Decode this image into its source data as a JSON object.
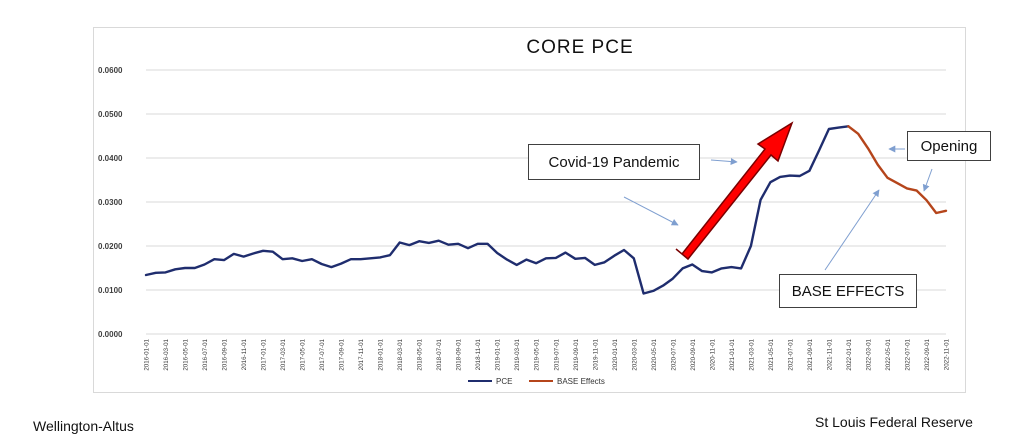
{
  "chart_data": {
    "type": "line",
    "title": "CORE PCE",
    "xlabel": "",
    "ylabel": "",
    "ylim": [
      0,
      0.06
    ],
    "y_ticks": [
      "0.0000",
      "0.0100",
      "0.0200",
      "0.0300",
      "0.0400",
      "0.0500",
      "0.0600"
    ],
    "grid": true,
    "legend_position": "bottom",
    "x": [
      "2016-01-01",
      "2016-02-01",
      "2016-03-01",
      "2016-04-01",
      "2016-05-01",
      "2016-06-01",
      "2016-07-01",
      "2016-08-01",
      "2016-09-01",
      "2016-10-01",
      "2016-11-01",
      "2016-12-01",
      "2017-01-01",
      "2017-02-01",
      "2017-03-01",
      "2017-04-01",
      "2017-05-01",
      "2017-06-01",
      "2017-07-01",
      "2017-08-01",
      "2017-09-01",
      "2017-10-01",
      "2017-11-01",
      "2017-12-01",
      "2018-01-01",
      "2018-02-01",
      "2018-03-01",
      "2018-04-01",
      "2018-05-01",
      "2018-06-01",
      "2018-07-01",
      "2018-08-01",
      "2018-09-01",
      "2018-10-01",
      "2018-11-01",
      "2018-12-01",
      "2019-01-01",
      "2019-02-01",
      "2019-03-01",
      "2019-04-01",
      "2019-05-01",
      "2019-06-01",
      "2019-07-01",
      "2019-08-01",
      "2019-09-01",
      "2019-10-01",
      "2019-11-01",
      "2019-12-01",
      "2020-01-01",
      "2020-02-01",
      "2020-03-01",
      "2020-04-01",
      "2020-05-01",
      "2020-06-01",
      "2020-07-01",
      "2020-08-01",
      "2020-09-01",
      "2020-10-01",
      "2020-11-01",
      "2020-12-01",
      "2021-01-01",
      "2021-02-01",
      "2021-03-01",
      "2021-04-01",
      "2021-05-01",
      "2021-06-01",
      "2021-07-01",
      "2021-08-01",
      "2021-09-01",
      "2021-10-01",
      "2021-11-01",
      "2021-12-01",
      "2022-01-01",
      "2022-02-01",
      "2022-03-01",
      "2022-04-01",
      "2022-05-01",
      "2022-06-01",
      "2022-07-01",
      "2022-08-01",
      "2022-09-01",
      "2022-10-01",
      "2022-11-01"
    ],
    "x_tick_labels": [
      "2016-01-01",
      "2016-03-01",
      "2016-05-01",
      "2016-07-01",
      "2016-09-01",
      "2016-11-01",
      "2017-01-01",
      "2017-03-01",
      "2017-05-01",
      "2017-07-01",
      "2017-09-01",
      "2017-11-01",
      "2018-01-01",
      "2018-03-01",
      "2018-05-01",
      "2018-07-01",
      "2018-09-01",
      "2018-11-01",
      "2019-01-01",
      "2019-03-01",
      "2019-05-01",
      "2019-07-01",
      "2019-09-01",
      "2019-11-01",
      "2020-01-01",
      "2020-03-01",
      "2020-05-01",
      "2020-07-01",
      "2020-09-01",
      "2020-11-01",
      "2021-01-01",
      "2021-03-01",
      "2021-05-01",
      "2021-07-01",
      "2021-09-01",
      "2021-11-01",
      "2022-01-01",
      "2022-03-01",
      "2022-05-01",
      "2022-07-01",
      "2022-09-01",
      "2022-11-01"
    ],
    "series": [
      {
        "name": "PCE",
        "color": "#1f2d6e",
        "values": [
          0.0134,
          0.0139,
          0.014,
          0.0147,
          0.015,
          0.015,
          0.0158,
          0.017,
          0.0168,
          0.0182,
          0.0176,
          0.0183,
          0.0189,
          0.0187,
          0.017,
          0.0172,
          0.0166,
          0.017,
          0.0159,
          0.0152,
          0.016,
          0.017,
          0.017,
          0.0172,
          0.0174,
          0.0179,
          0.0208,
          0.0202,
          0.0211,
          0.0207,
          0.0212,
          0.0203,
          0.0205,
          0.0195,
          0.0205,
          0.0205,
          0.0184,
          0.0169,
          0.0157,
          0.0169,
          0.0161,
          0.0172,
          0.0173,
          0.0185,
          0.0171,
          0.0173,
          0.0157,
          0.0163,
          0.0178,
          0.0191,
          0.0172,
          0.0092,
          0.0098,
          0.011,
          0.0126,
          0.0149,
          0.0158,
          0.0143,
          0.014,
          0.0149,
          0.0152,
          0.0149,
          0.02,
          0.0305,
          0.0345,
          0.0357,
          0.036,
          0.0359,
          0.0371,
          0.0418,
          0.0466,
          0.0469,
          0.0472,
          null,
          null,
          null,
          null,
          null,
          null,
          null,
          null,
          null,
          null
        ]
      },
      {
        "name": "BASE Effects",
        "color": "#b5451b",
        "values": [
          null,
          null,
          null,
          null,
          null,
          null,
          null,
          null,
          null,
          null,
          null,
          null,
          null,
          null,
          null,
          null,
          null,
          null,
          null,
          null,
          null,
          null,
          null,
          null,
          null,
          null,
          null,
          null,
          null,
          null,
          null,
          null,
          null,
          null,
          null,
          null,
          null,
          null,
          null,
          null,
          null,
          null,
          null,
          null,
          null,
          null,
          null,
          null,
          null,
          null,
          null,
          null,
          null,
          null,
          null,
          null,
          null,
          null,
          null,
          null,
          null,
          null,
          null,
          null,
          null,
          null,
          null,
          null,
          null,
          null,
          null,
          null,
          0.0472,
          0.0455,
          0.0422,
          0.0385,
          0.0355,
          0.0343,
          0.0331,
          0.0326,
          0.0304,
          0.0275,
          0.028
        ]
      }
    ],
    "annotations": {
      "covid": "Covid-19 Pandemic",
      "opening": "Opening",
      "base_effects": "BASE EFFECTS"
    },
    "arrow_color": "#ff0000"
  },
  "footer": {
    "left": "Wellington-Altus",
    "right": "St Louis Federal Reserve"
  }
}
